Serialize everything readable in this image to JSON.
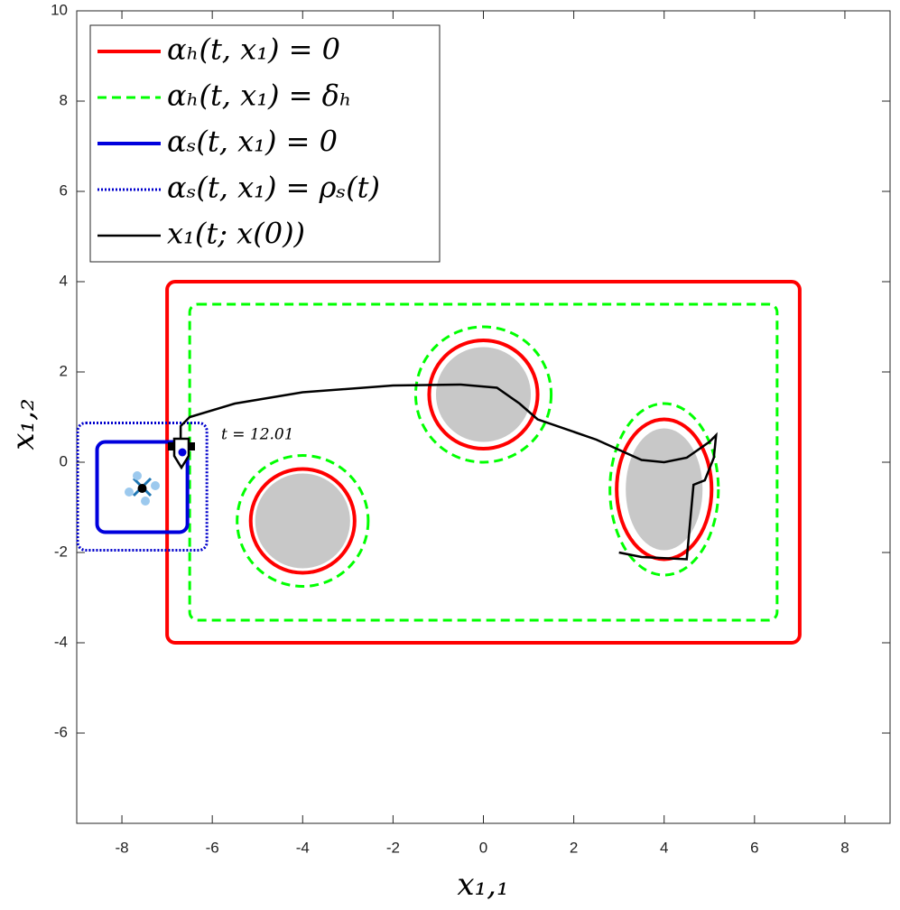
{
  "chart_data": {
    "type": "shapes",
    "xlabel": "x₁,₁",
    "ylabel": "x₁,₂",
    "xlim": [
      -9,
      9
    ],
    "ylim": [
      -8,
      10
    ],
    "xticks": [
      -8,
      -6,
      -4,
      -2,
      0,
      2,
      4,
      6,
      8
    ],
    "yticks": [
      -6,
      -4,
      -2,
      0,
      2,
      4,
      6,
      8,
      10
    ],
    "annotation": "t = 12.01",
    "obstacles": {
      "color": "#c8c8c8",
      "shapes": [
        {
          "kind": "ellipse",
          "cx": 0,
          "cy": 1.5,
          "rx": 1.05,
          "ry": 1.05
        },
        {
          "kind": "ellipse",
          "cx": -4,
          "cy": -1.3,
          "rx": 1.05,
          "ry": 1.05
        },
        {
          "kind": "ellipse",
          "cx": 4,
          "cy": -0.6,
          "rx": 0.85,
          "ry": 1.35
        }
      ]
    },
    "series": [
      {
        "name": "αₕ(t, x₁) = 0",
        "color": "#ff0000",
        "dash": "solid",
        "shapes": [
          {
            "kind": "rect",
            "x": [
              -7,
              7
            ],
            "y": [
              -4,
              4
            ]
          },
          {
            "kind": "ellipse",
            "cx": 0,
            "cy": 1.5,
            "rx": 1.2,
            "ry": 1.2
          },
          {
            "kind": "ellipse",
            "cx": -4,
            "cy": -1.3,
            "rx": 1.15,
            "ry": 1.15
          },
          {
            "kind": "ellipse",
            "cx": 4,
            "cy": -0.6,
            "rx": 1.05,
            "ry": 1.55
          }
        ]
      },
      {
        "name": "αₕ(t, x₁) = δₕ",
        "color": "#00ff00",
        "dash": "dashed",
        "shapes": [
          {
            "kind": "rect",
            "x": [
              -6.5,
              6.5
            ],
            "y": [
              -3.5,
              3.5
            ]
          },
          {
            "kind": "ellipse",
            "cx": 0,
            "cy": 1.5,
            "rx": 1.5,
            "ry": 1.5
          },
          {
            "kind": "ellipse",
            "cx": -4,
            "cy": -1.3,
            "rx": 1.45,
            "ry": 1.45
          },
          {
            "kind": "ellipse",
            "cx": 4,
            "cy": -0.6,
            "rx": 1.2,
            "ry": 1.9
          }
        ]
      },
      {
        "name": "αₛ(t, x₁) = 0",
        "color": "#0000dd",
        "dash": "solid",
        "shapes": [
          {
            "kind": "rect",
            "x": [
              -8.55,
              -6.55
            ],
            "y": [
              -1.55,
              0.45
            ]
          }
        ]
      },
      {
        "name": "αₛ(t, x₁) = ρₛ(t)",
        "color": "#0000cc",
        "dash": "dotted",
        "shapes": [
          {
            "kind": "rect",
            "x": [
              -8.98,
              -6.12
            ],
            "y": [
              -1.95,
              0.87
            ]
          }
        ]
      },
      {
        "name": "x₁(t; x(0))",
        "color": "#000000",
        "dash": "solid",
        "x": [
          3,
          3.5,
          4.5,
          4.65,
          4.9,
          5.1,
          5.15,
          5.0,
          4.5,
          4,
          3.5,
          2.5,
          1.2,
          0.8,
          0.3,
          -0.5,
          -2,
          -4,
          -5.5,
          -6.5,
          -6.7,
          -6.7
        ],
        "y": [
          -2,
          -2.1,
          -2.15,
          -0.5,
          -0.4,
          0.1,
          0.6,
          0.45,
          0.1,
          0,
          0.05,
          0.5,
          0.95,
          1.3,
          1.65,
          1.72,
          1.7,
          1.55,
          1.3,
          1.0,
          0.8,
          0.5
        ]
      }
    ]
  }
}
